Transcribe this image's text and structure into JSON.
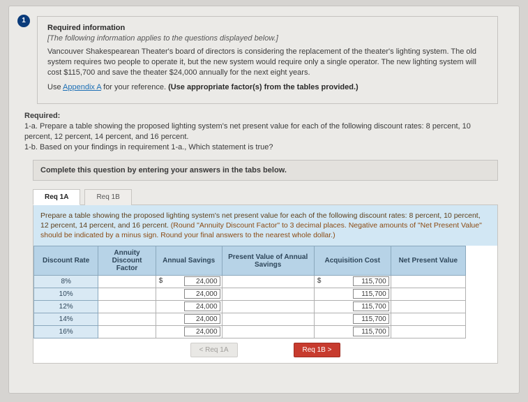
{
  "step_number": "1",
  "required_info": {
    "heading": "Required information",
    "italic_note": "[The following information applies to the questions displayed below.]",
    "paragraph": "Vancouver Shakespearean Theater's board of directors is considering the replacement of the theater's lighting system. The old system requires two people to operate it, but the new system would require only a single operator. The new lighting system will cost $115,700 and save the theater $24,000 annually for the next eight years.",
    "use_prefix": "Use ",
    "appendix_link": "Appendix A",
    "use_mid": " for your reference. ",
    "use_hint": "(Use appropriate factor(s) from the tables provided.)"
  },
  "required_block": {
    "label": "Required:",
    "line_a": "1-a. Prepare a table showing the proposed lighting system's net present value for each of the following discount rates: 8 percent, 10 percent, 12 percent, 14 percent, and 16 percent.",
    "line_b": "1-b. Based on your findings in requirement 1-a., Which statement is true?"
  },
  "complete_msg": "Complete this question by entering your answers in the tabs below.",
  "tabs": {
    "a": "Req 1A",
    "b": "Req 1B"
  },
  "instruction_main": "Prepare a table showing the proposed lighting system's net present value for each of the following discount rates: 8 percent, 10 percent, 12 percent, 14 percent, and 16 percent. ",
  "instruction_tail": "(Round \"Annuity Discount Factor\" to 3 decimal places. Negative amounts of \"Net Present Value\" should be indicated by a minus sign. Round your final answers to the nearest whole dollar.)",
  "table": {
    "headers": {
      "rate": "Discount Rate",
      "factor": "Annuity Discount Factor",
      "savings": "Annual Savings",
      "pv": "Present Value of Annual Savings",
      "cost": "Acquisition Cost",
      "npv": "Net Present Value"
    },
    "currency": "$",
    "rows": [
      {
        "rate": "8%",
        "savings": "24,000",
        "cost": "115,700"
      },
      {
        "rate": "10%",
        "savings": "24,000",
        "cost": "115,700"
      },
      {
        "rate": "12%",
        "savings": "24,000",
        "cost": "115,700"
      },
      {
        "rate": "14%",
        "savings": "24,000",
        "cost": "115,700"
      },
      {
        "rate": "16%",
        "savings": "24,000",
        "cost": "115,700"
      }
    ],
    "col_widths": {
      "rate": 74,
      "factor": 66,
      "savings": 76,
      "pv": 106,
      "cost": 88,
      "npv": 86
    }
  },
  "nav": {
    "prev": "<  Req 1A",
    "next": "Req 1B  >"
  },
  "colors": {
    "page_bg": "#d6d4d1",
    "panel_bg": "#ebeae7",
    "tab_active_bg": "#ffffff",
    "tab_inactive_bg": "#efedea",
    "instruction_bg": "#d2e7f4",
    "th_bg": "#b7d3e7",
    "rate_cell_bg": "#d9e9f4",
    "nav_next_bg": "#c73b2e",
    "step_bg": "#0a3b7a"
  }
}
